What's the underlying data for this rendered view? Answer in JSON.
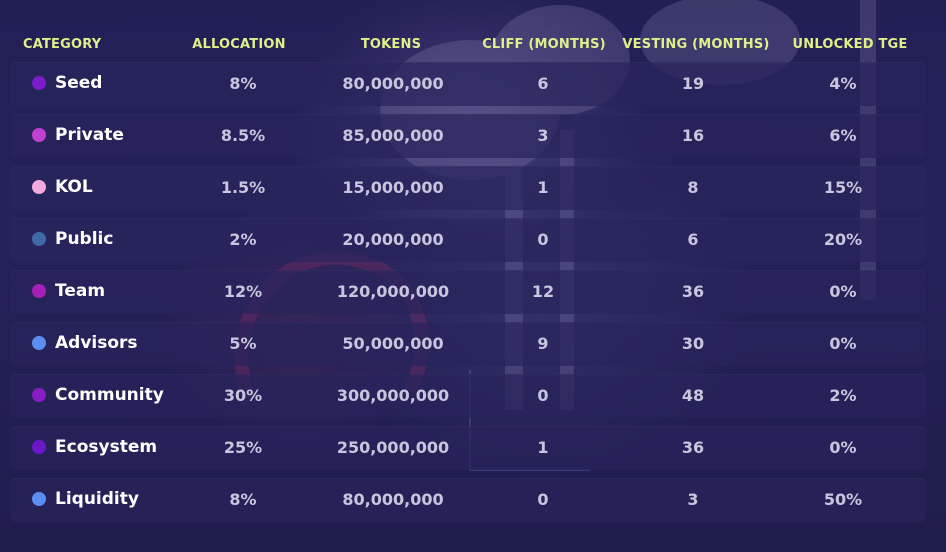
{
  "columns": {
    "category": "CATEGORY",
    "allocation": "ALLOCATION",
    "tokens": "TOKENS",
    "cliff": "CLIFF (MONTHS)",
    "vesting": "VESTING (MONTHS)",
    "unlocked": "UNLOCKED TGE"
  },
  "rows": [
    {
      "name": "Seed",
      "color": "#7a1cc9",
      "allocation": "8%",
      "tokens": "80,000,000",
      "cliff": "6",
      "vesting": "19",
      "unlocked": "4%"
    },
    {
      "name": "Private",
      "color": "#c13fd1",
      "allocation": "8.5%",
      "tokens": "85,000,000",
      "cliff": "3",
      "vesting": "16",
      "unlocked": "6%"
    },
    {
      "name": "KOL",
      "color": "#f2a9dd",
      "allocation": "1.5%",
      "tokens": "15,000,000",
      "cliff": "1",
      "vesting": "8",
      "unlocked": "15%"
    },
    {
      "name": "Public",
      "color": "#3f6aa6",
      "allocation": "2%",
      "tokens": "20,000,000",
      "cliff": "0",
      "vesting": "6",
      "unlocked": "20%"
    },
    {
      "name": "Team",
      "color": "#a420b8",
      "allocation": "12%",
      "tokens": "120,000,000",
      "cliff": "12",
      "vesting": "36",
      "unlocked": "0%"
    },
    {
      "name": "Advisors",
      "color": "#5b8ef0",
      "allocation": "5%",
      "tokens": "50,000,000",
      "cliff": "9",
      "vesting": "30",
      "unlocked": "0%"
    },
    {
      "name": "Community",
      "color": "#8a1cc4",
      "allocation": "30%",
      "tokens": "300,000,000",
      "cliff": "0",
      "vesting": "48",
      "unlocked": "2%"
    },
    {
      "name": "Ecosystem",
      "color": "#6a17c8",
      "allocation": "25%",
      "tokens": "250,000,000",
      "cliff": "1",
      "vesting": "36",
      "unlocked": "0%"
    },
    {
      "name": "Liquidity",
      "color": "#5b8ef0",
      "allocation": "8%",
      "tokens": "80,000,000",
      "cliff": "0",
      "vesting": "3",
      "unlocked": "50%"
    }
  ]
}
